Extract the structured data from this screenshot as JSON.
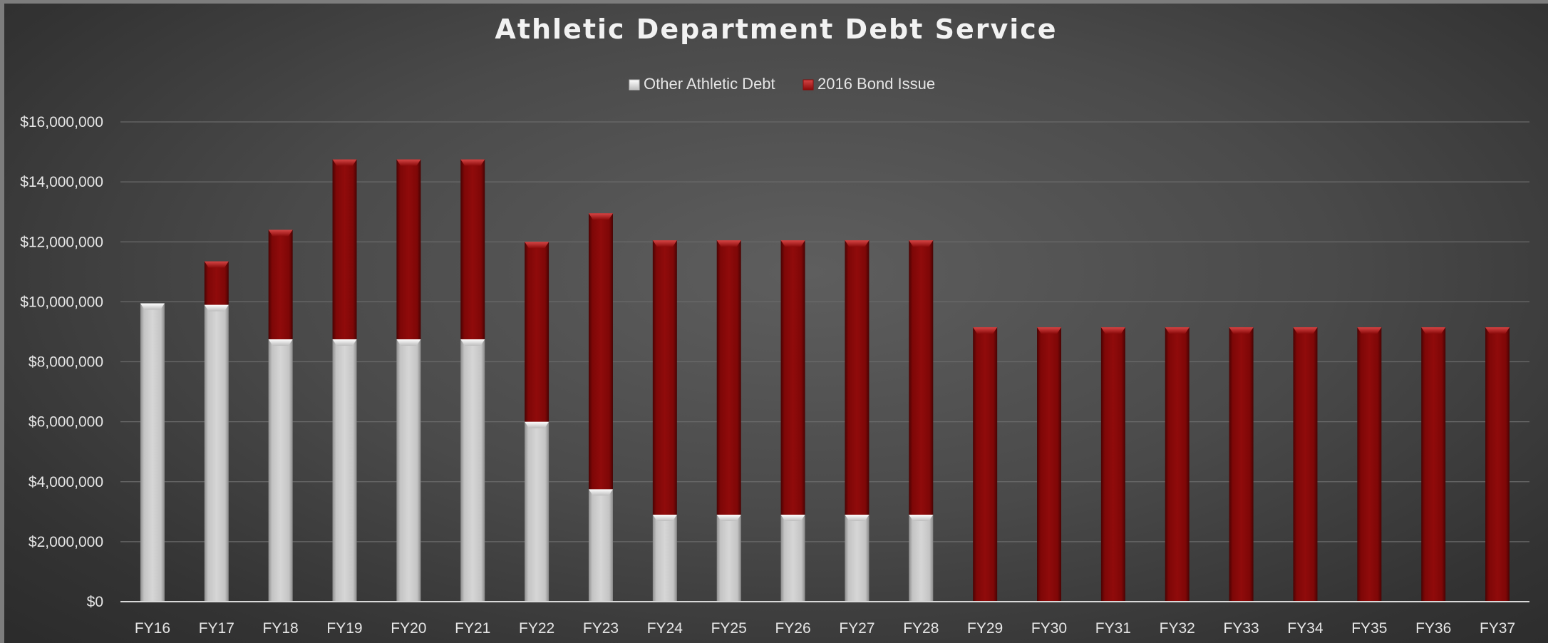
{
  "chart_data": {
    "type": "bar",
    "stacked": true,
    "title": "Athletic Department Debt Service",
    "xlabel": "",
    "ylabel": "",
    "categories": [
      "FY16",
      "FY17",
      "FY18",
      "FY19",
      "FY20",
      "FY21",
      "FY22",
      "FY23",
      "FY24",
      "FY25",
      "FY26",
      "FY27",
      "FY28",
      "FY29",
      "FY30",
      "FY31",
      "FY32",
      "FY33",
      "FY34",
      "FY35",
      "FY36",
      "FY37"
    ],
    "series": [
      {
        "name": "Other Athletic Debt",
        "color": "#c8c8c8",
        "values": [
          9950000,
          9900000,
          8750000,
          8750000,
          8750000,
          8750000,
          6000000,
          3750000,
          2900000,
          2900000,
          2900000,
          2900000,
          2900000,
          0,
          0,
          0,
          0,
          0,
          0,
          0,
          0,
          0
        ]
      },
      {
        "name": "2016 Bond Issue",
        "color": "#8b0a0a",
        "values": [
          0,
          1450000,
          3650000,
          6000000,
          6000000,
          6000000,
          6000000,
          9200000,
          9150000,
          9150000,
          9150000,
          9150000,
          9150000,
          9150000,
          9150000,
          9150000,
          9150000,
          9150000,
          9150000,
          9150000,
          9150000,
          9150000
        ]
      }
    ],
    "ylim": [
      0,
      16000000
    ],
    "yticks": [
      "$0",
      "$2,000,000",
      "$4,000,000",
      "$6,000,000",
      "$8,000,000",
      "$10,000,000",
      "$12,000,000",
      "$14,000,000",
      "$16,000,000"
    ],
    "grid": true,
    "legend_position": "top-center"
  }
}
